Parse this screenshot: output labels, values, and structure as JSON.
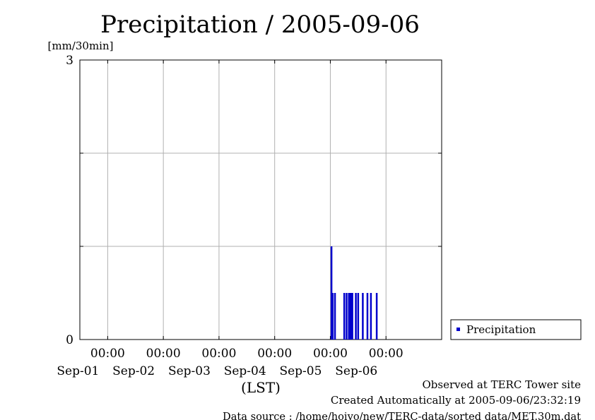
{
  "chart_data": {
    "type": "bar",
    "title": "Precipitation / 2005-09-06",
    "ylabel": "[mm/30min]",
    "xlabel": "(LST)",
    "ylim": [
      0,
      3
    ],
    "y_tick_labels": [
      "0",
      "3"
    ],
    "y_gridlines": [
      0,
      1,
      2,
      3
    ],
    "x_range": [
      "2005-08-31 12:00",
      "2005-09-06 24:00"
    ],
    "x_ticks": [
      {
        "time": "2005-09-01 00:00",
        "time_label": "00:00",
        "date_label": "Sep-01"
      },
      {
        "time": "2005-09-02 00:00",
        "time_label": "00:00",
        "date_label": "Sep-02"
      },
      {
        "time": "2005-09-03 00:00",
        "time_label": "00:00",
        "date_label": "Sep-03"
      },
      {
        "time": "2005-09-04 00:00",
        "time_label": "00:00",
        "date_label": "Sep-04"
      },
      {
        "time": "2005-09-05 00:00",
        "time_label": "00:00",
        "date_label": "Sep-05"
      },
      {
        "time": "2005-09-06 00:00",
        "time_label": "00:00",
        "date_label": "Sep-06"
      }
    ],
    "grid": true,
    "legend_position": "right",
    "series": [
      {
        "name": "Precipitation",
        "color": "#0000cc",
        "points": [
          {
            "time": "2005-09-05 00:30",
            "value": 1.0
          },
          {
            "time": "2005-09-05 01:00",
            "value": 0.5
          },
          {
            "time": "2005-09-05 02:00",
            "value": 0.5
          },
          {
            "time": "2005-09-05 06:00",
            "value": 0.5
          },
          {
            "time": "2005-09-05 07:00",
            "value": 0.5
          },
          {
            "time": "2005-09-05 08:00",
            "value": 0.5
          },
          {
            "time": "2005-09-05 08:30",
            "value": 0.5
          },
          {
            "time": "2005-09-05 09:00",
            "value": 0.5
          },
          {
            "time": "2005-09-05 09:30",
            "value": 0.5
          },
          {
            "time": "2005-09-05 11:00",
            "value": 0.5
          },
          {
            "time": "2005-09-05 12:00",
            "value": 0.5
          },
          {
            "time": "2005-09-05 14:00",
            "value": 0.5
          },
          {
            "time": "2005-09-05 16:00",
            "value": 0.5
          },
          {
            "time": "2005-09-05 17:30",
            "value": 0.5
          },
          {
            "time": "2005-09-05 20:00",
            "value": 0.5
          }
        ]
      }
    ]
  },
  "footer": {
    "line1": "Observed at TERC Tower site",
    "line2": "Created Automatically at 2005-09-06/23:32:19",
    "line3": "Data source : /home/hoivo/new/TERC-data/sorted data/MET.30m.dat"
  }
}
